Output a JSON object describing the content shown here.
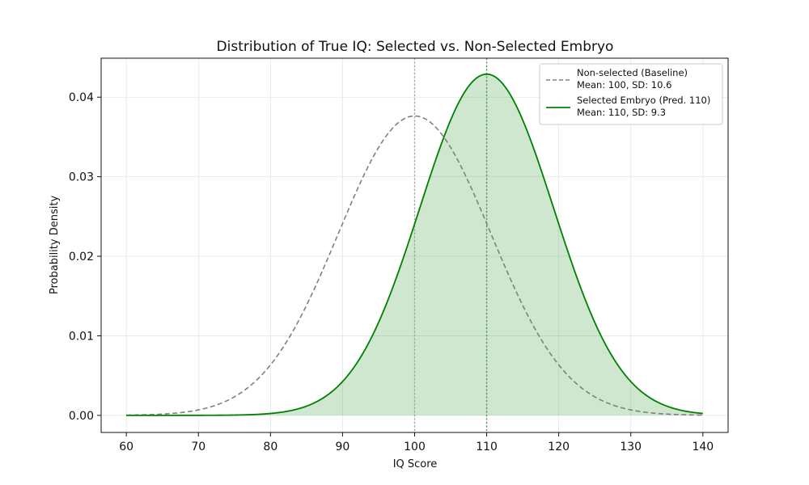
{
  "chart_data": {
    "type": "line",
    "title": "Distribution of True IQ: Selected vs. Non-Selected Embryo",
    "xlabel": "IQ Score",
    "ylabel": "Probability Density",
    "xlim": [
      56.5,
      143.5
    ],
    "ylim": [
      -0.00215,
      0.0449
    ],
    "x_ticks": [
      60,
      70,
      80,
      90,
      100,
      110,
      120,
      130,
      140
    ],
    "y_ticks": [
      0.0,
      0.01,
      0.02,
      0.03,
      0.04
    ],
    "y_tick_labels": [
      "0.00",
      "0.01",
      "0.02",
      "0.03",
      "0.04"
    ],
    "grid": true,
    "legend_position": "top-right",
    "x_range": [
      60,
      140
    ],
    "series": [
      {
        "name": "Non-selected (Baseline)",
        "legend_line2": "Mean: 100, SD: 10.6",
        "mean": 100,
        "sd": 10.6,
        "color": "#808080",
        "style": "dashed",
        "fill": false,
        "vline_x": 100,
        "vline_color": "#a0a0a0"
      },
      {
        "name": "Selected Embryo (Pred. 110)",
        "legend_line2": "Mean: 110, SD: 9.3",
        "mean": 110,
        "sd": 9.3,
        "color": "#008000",
        "style": "solid",
        "fill": true,
        "fill_color": "#008000",
        "vline_x": 110,
        "vline_color": "#4a9a4a"
      }
    ]
  }
}
